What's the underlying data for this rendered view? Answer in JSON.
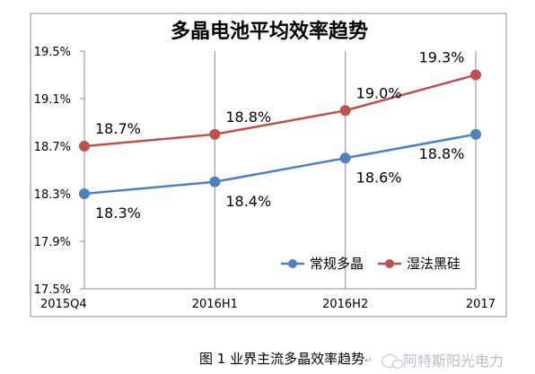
{
  "chart_data": {
    "type": "line",
    "title": "多晶电池平均效率趋势",
    "categories": [
      "2015Q4",
      "2016H1",
      "2016H2",
      "2017"
    ],
    "y_ticks": [
      "17.5%",
      "17.9%",
      "18.3%",
      "18.7%",
      "19.1%",
      "19.5%"
    ],
    "ylim": [
      17.5,
      19.5
    ],
    "grid": {
      "vertical": true,
      "horizontal": false
    },
    "legend_position": "bottom-right",
    "series": [
      {
        "name": "常规多晶",
        "color": "#4f81bd",
        "values": [
          18.3,
          18.4,
          18.6,
          18.8
        ],
        "labels": [
          "18.3%",
          "18.4%",
          "18.6%",
          "18.8%"
        ]
      },
      {
        "name": "湿法黑硅",
        "color": "#c0504d",
        "values": [
          18.7,
          18.8,
          19.0,
          19.3
        ],
        "labels": [
          "18.7%",
          "18.8%",
          "19.0%",
          "19.3%"
        ]
      }
    ]
  },
  "caption": {
    "text": "图 1  业界主流多晶效率趋势",
    "watermark": "阿特斯阳光电力",
    "watermark_icon": "wechat-icon"
  }
}
